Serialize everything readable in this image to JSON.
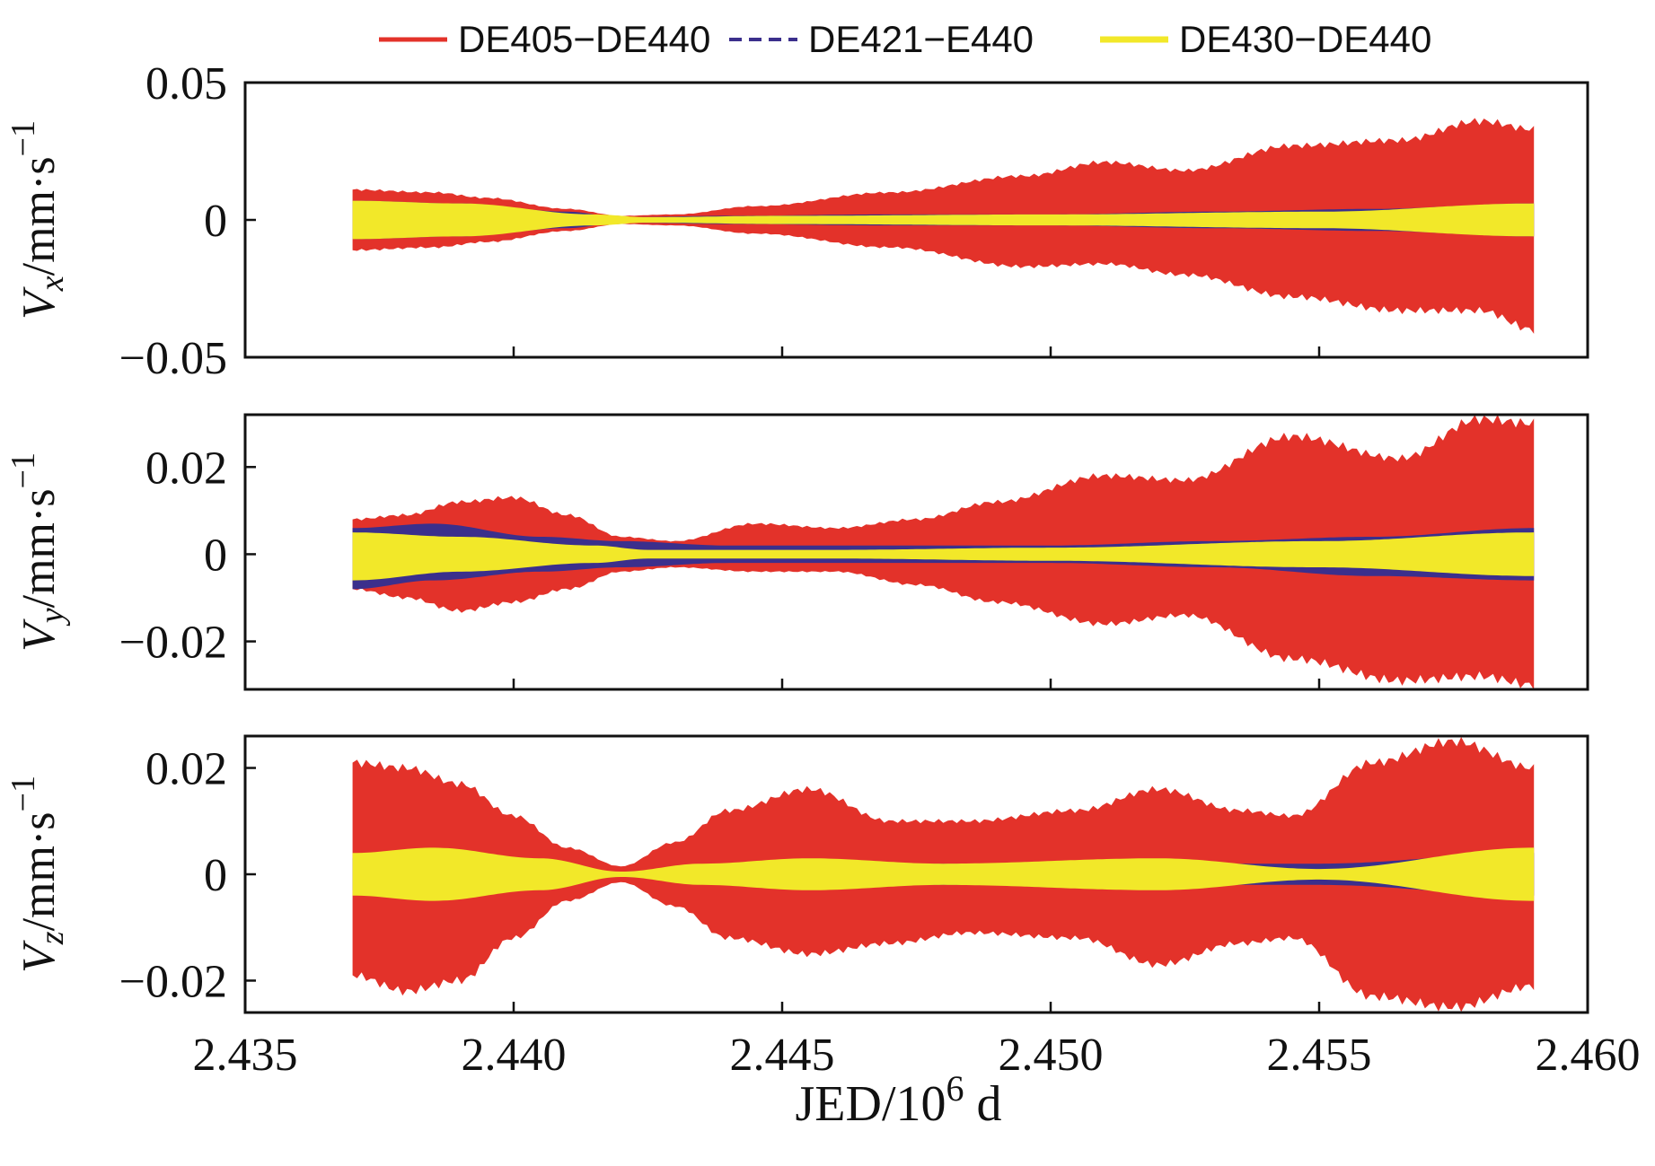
{
  "chart_data": {
    "type": "area",
    "x_range": [
      2.435,
      2.46
    ],
    "x_ticks": [
      2.435,
      2.44,
      2.445,
      2.45,
      2.455,
      2.46
    ],
    "x_tick_labels": [
      "2.435",
      "2.440",
      "2.445",
      "2.450",
      "2.455",
      "2.460"
    ],
    "xlabel": {
      "base": "JED/10",
      "sup": "6",
      "unit": " d"
    },
    "data_x_range": [
      2.437,
      2.459
    ],
    "legend": [
      {
        "name": "DE405−DE440",
        "color": "#e3322a",
        "style": "solid"
      },
      {
        "name": "DE421−E440",
        "color": "#3b2f8c",
        "style": "dashed"
      },
      {
        "name": "DE430−DE440",
        "color": "#f2e829",
        "style": "solid"
      }
    ],
    "panels": [
      {
        "name": "Vx",
        "ylabel": {
          "v": "V",
          "sub": "x",
          "unit": "/mm·s",
          "sup": "−1"
        },
        "ylim": [
          -0.05,
          0.05
        ],
        "y_ticks": [
          0.05,
          0,
          -0.05
        ],
        "y_tick_labels": [
          "0.05",
          "0",
          "−0.05"
        ],
        "series": [
          {
            "name": "DE405−DE440",
            "x": [
              2.437,
              2.4385,
              2.4395,
              2.441,
              2.442,
              2.443,
              2.4445,
              2.447,
              2.4495,
              2.451,
              2.4525,
              2.4545,
              2.4565,
              2.458,
              2.459
            ],
            "upper": [
              0.011,
              0.01,
              0.008,
              0.004,
              0.0015,
              0.002,
              0.005,
              0.01,
              0.016,
              0.021,
              0.018,
              0.027,
              0.029,
              0.036,
              0.033
            ],
            "lower": [
              -0.011,
              -0.01,
              -0.008,
              -0.004,
              -0.0015,
              -0.002,
              -0.005,
              -0.01,
              -0.017,
              -0.016,
              -0.02,
              -0.028,
              -0.033,
              -0.033,
              -0.04
            ]
          },
          {
            "name": "DE421−E440",
            "x": [
              2.437,
              2.439,
              2.441,
              2.442,
              2.444,
              2.447,
              2.45,
              2.453,
              2.456,
              2.459
            ],
            "upper": [
              0.007,
              0.006,
              0.003,
              0.001,
              0.0015,
              0.002,
              0.002,
              0.003,
              0.004,
              0.006
            ],
            "lower": [
              -0.007,
              -0.006,
              -0.003,
              -0.001,
              -0.0015,
              -0.002,
              -0.002,
              -0.003,
              -0.004,
              -0.006
            ]
          },
          {
            "name": "DE430−DE440",
            "x": [
              2.437,
              2.439,
              2.4415,
              2.4425,
              2.445,
              2.45,
              2.455,
              2.459
            ],
            "upper": [
              0.007,
              0.006,
              0.002,
              0.001,
              0.0015,
              0.002,
              0.003,
              0.006
            ],
            "lower": [
              -0.007,
              -0.006,
              -0.002,
              -0.001,
              -0.0015,
              -0.002,
              -0.003,
              -0.006
            ]
          }
        ]
      },
      {
        "name": "Vy",
        "ylabel": {
          "v": "V",
          "sub": "y",
          "unit": "/mm·s",
          "sup": "−1"
        },
        "ylim": [
          -0.031,
          0.032
        ],
        "y_ticks": [
          0.02,
          0,
          -0.02
        ],
        "y_tick_labels": [
          "0.02",
          "0",
          "−0.02"
        ],
        "series": [
          {
            "name": "DE405−DE440",
            "x": [
              2.437,
              2.438,
              2.439,
              2.44,
              2.441,
              2.442,
              2.443,
              2.4445,
              2.446,
              2.4475,
              2.449,
              2.451,
              2.4525,
              2.4545,
              2.4565,
              2.458,
              2.459
            ],
            "upper": [
              0.008,
              0.009,
              0.012,
              0.013,
              0.009,
              0.004,
              0.003,
              0.007,
              0.006,
              0.008,
              0.012,
              0.018,
              0.017,
              0.027,
              0.022,
              0.031,
              0.03
            ],
            "lower": [
              -0.008,
              -0.01,
              -0.013,
              -0.011,
              -0.008,
              -0.004,
              -0.003,
              -0.004,
              -0.004,
              -0.007,
              -0.011,
              -0.016,
              -0.014,
              -0.024,
              -0.029,
              -0.028,
              -0.03
            ]
          },
          {
            "name": "DE421−E440",
            "x": [
              2.437,
              2.4385,
              2.4405,
              2.442,
              2.444,
              2.447,
              2.45,
              2.453,
              2.456,
              2.459
            ],
            "upper": [
              0.006,
              0.007,
              0.004,
              0.003,
              0.002,
              0.002,
              0.002,
              0.003,
              0.004,
              0.006
            ],
            "lower": [
              -0.008,
              -0.006,
              -0.004,
              -0.003,
              -0.002,
              -0.002,
              -0.002,
              -0.003,
              -0.005,
              -0.006
            ]
          },
          {
            "name": "DE430−DE440",
            "x": [
              2.437,
              2.439,
              2.4415,
              2.4425,
              2.446,
              2.45,
              2.455,
              2.459
            ],
            "upper": [
              0.005,
              0.004,
              0.002,
              0.001,
              0.001,
              0.0015,
              0.003,
              0.005
            ],
            "lower": [
              -0.006,
              -0.004,
              -0.002,
              -0.001,
              -0.001,
              -0.0015,
              -0.003,
              -0.005
            ]
          }
        ]
      },
      {
        "name": "Vz",
        "ylabel": {
          "v": "V",
          "sub": "z",
          "unit": "/mm·s",
          "sup": "−1"
        },
        "ylim": [
          -0.026,
          0.026
        ],
        "y_ticks": [
          0.02,
          0,
          -0.02
        ],
        "y_tick_labels": [
          "0.02",
          "0",
          "−0.02"
        ],
        "series": [
          {
            "name": "DE405−DE440",
            "x": [
              2.437,
              2.438,
              2.439,
              2.44,
              2.441,
              2.442,
              2.443,
              2.444,
              2.4455,
              2.447,
              2.4485,
              2.4505,
              2.452,
              2.4535,
              2.4545,
              2.456,
              2.4575,
              2.459
            ],
            "upper": [
              0.021,
              0.02,
              0.017,
              0.011,
              0.005,
              0.0015,
              0.006,
              0.012,
              0.016,
              0.01,
              0.01,
              0.012,
              0.016,
              0.012,
              0.011,
              0.021,
              0.025,
              0.02
            ],
            "lower": [
              -0.019,
              -0.022,
              -0.02,
              -0.012,
              -0.005,
              -0.0015,
              -0.006,
              -0.012,
              -0.015,
              -0.013,
              -0.011,
              -0.012,
              -0.017,
              -0.013,
              -0.012,
              -0.023,
              -0.025,
              -0.021
            ]
          },
          {
            "name": "DE421−E440",
            "x": [
              2.437,
              2.4395,
              2.441,
              2.442,
              2.443,
              2.4455,
              2.45,
              2.455,
              2.459
            ],
            "upper": [
              0.003,
              0.003,
              0.001,
              0.0005,
              0.001,
              0.002,
              0.002,
              0.002,
              0.004
            ],
            "lower": [
              -0.003,
              -0.003,
              -0.001,
              -0.0005,
              -0.001,
              -0.002,
              -0.002,
              -0.002,
              -0.004
            ]
          },
          {
            "name": "DE430−DE440",
            "x": [
              2.437,
              2.4385,
              2.4405,
              2.442,
              2.4435,
              2.4455,
              2.448,
              2.452,
              2.455,
              2.459
            ],
            "upper": [
              0.004,
              0.005,
              0.003,
              0.0005,
              0.002,
              0.003,
              0.002,
              0.003,
              0.001,
              0.005
            ],
            "lower": [
              -0.004,
              -0.005,
              -0.003,
              -0.0005,
              -0.002,
              -0.003,
              -0.002,
              -0.003,
              -0.001,
              -0.005
            ]
          }
        ]
      }
    ]
  }
}
